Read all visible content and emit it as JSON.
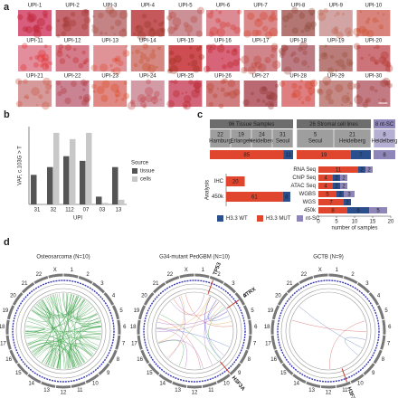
{
  "panel_labels": [
    "a",
    "b",
    "c",
    "d"
  ],
  "panel_a": {
    "samples": [
      "UPI-1",
      "UPI-2",
      "UPI-3",
      "UPI-4",
      "UPI-5",
      "UPI-6",
      "UPI-7",
      "UPI-8",
      "UPI-9",
      "UPI-10",
      "UPI-11",
      "UPI-12",
      "UPI-13",
      "UPI-14",
      "UPI-15",
      "UPI-16",
      "UPI-17",
      "UPI-18",
      "UPI-19",
      "UPI-20",
      "UPI-21",
      "UPI-22",
      "UPI-23",
      "UPI-24",
      "UPI-25",
      "UPI-26",
      "UPI-27",
      "UPI-28",
      "UPI-29",
      "UPI-30"
    ]
  },
  "chart_data": {
    "type": "bar",
    "categories": [
      "31",
      "32",
      "112",
      "07",
      "03",
      "13"
    ],
    "series": [
      {
        "name": "tissue",
        "color": "#555555",
        "values": [
          0.38,
          0.48,
          0.62,
          0.56,
          0.1,
          0.48
        ]
      },
      {
        "name": "cells",
        "color": "#c8c8c8",
        "values": [
          null,
          0.92,
          0.84,
          0.92,
          0.02,
          0.06
        ]
      }
    ],
    "ylabel": "VAF, c.103G > T",
    "xlabel": "UPI",
    "legend_title": "Source",
    "ylim": [
      0,
      1
    ]
  },
  "panel_c": {
    "groups": [
      {
        "name": "H3.3 WT",
        "color": "#2b4f8c"
      },
      {
        "name": "H3.3 MUT",
        "color": "#e0452e"
      },
      {
        "name": "nt-SC",
        "color": "#8e86b8"
      }
    ],
    "cohorts": [
      {
        "title": "96 Tissue Samples",
        "sites": [
          {
            "n": 22,
            "name": "Hamburg"
          },
          {
            "n": 19,
            "name": "Erlangen"
          },
          {
            "n": 24,
            "name": "Heidelberg"
          },
          {
            "n": 31,
            "name": "Seoul"
          }
        ],
        "counts": [
          11,
          85,
          null
        ]
      },
      {
        "title": "26 Stromal cell lines",
        "sites": [
          {
            "n": 5,
            "name": "Seoul"
          },
          {
            "n": 21,
            "name": "Heidelberg"
          }
        ],
        "counts": [
          7,
          19,
          null
        ]
      },
      {
        "title": "8 nt-SC",
        "sites": [
          {
            "n": 8,
            "name": "Heidelberg"
          }
        ],
        "counts": [
          null,
          null,
          8
        ]
      }
    ],
    "analysis": {
      "title": "Analysis",
      "xlim": [
        0,
        70
      ],
      "rows": [
        {
          "label": "IHC",
          "counts": [
            null,
            20,
            null
          ]
        },
        {
          "label": "450k",
          "counts": [
            8,
            61,
            null
          ]
        }
      ]
    },
    "assays": {
      "xlabel": "number of samples",
      "xlim": [
        0,
        20
      ],
      "xticks": [
        0,
        5,
        10,
        15,
        20
      ],
      "rows": [
        {
          "label": "RNA Seq",
          "counts": [
            2,
            11,
            2
          ]
        },
        {
          "label": "ChIP Seq",
          "counts": [
            2,
            4,
            2
          ]
        },
        {
          "label": "ATAC Seq",
          "counts": [
            2,
            4,
            2
          ]
        },
        {
          "label": "WGBS",
          "counts": [
            2,
            5,
            3
          ]
        },
        {
          "label": "WGS",
          "counts": [
            2,
            7,
            null
          ]
        },
        {
          "label": "450k",
          "counts": [
            6,
            8,
            5
          ]
        }
      ]
    }
  },
  "panel_d": {
    "chromosomes": [
      "1",
      "2",
      "3",
      "4",
      "5",
      "6",
      "7",
      "8",
      "9",
      "10",
      "11",
      "12",
      "13",
      "14",
      "15",
      "16",
      "17",
      "18",
      "19",
      "20",
      "21",
      "22",
      "X"
    ],
    "plots": [
      {
        "title": "Osteosarcoma (N=10)",
        "genes": []
      },
      {
        "title": "G34-mutant PedGBM (N=10)",
        "genes": [
          "TP53",
          "ATRX",
          "H3F3A"
        ]
      },
      {
        "title": "GCTB (N=9)",
        "genes": [
          "H3F3A"
        ]
      }
    ]
  }
}
